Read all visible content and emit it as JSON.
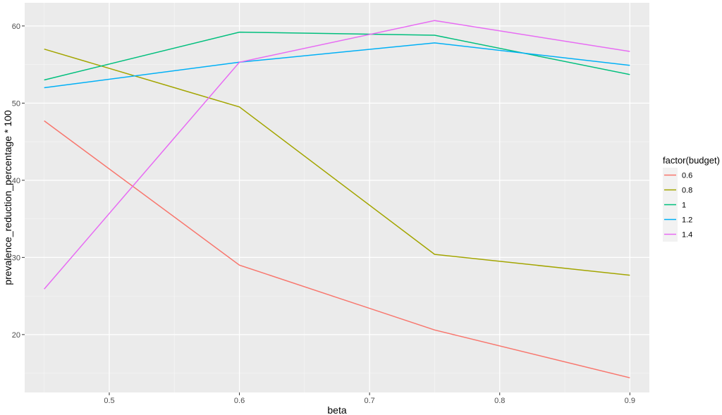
{
  "chart_data": {
    "type": "line",
    "xlabel": "beta",
    "ylabel": "prevalence_reduction_percentage * 100",
    "xlim": [
      0.435,
      0.915
    ],
    "ylim": [
      12.5,
      63
    ],
    "x_ticks": [
      0.5,
      0.6,
      0.7,
      0.8,
      0.9
    ],
    "x_tick_labels": [
      "0.5",
      "0.6",
      "0.7",
      "0.8",
      "0.9"
    ],
    "y_ticks": [
      20,
      30,
      40,
      50,
      60
    ],
    "y_tick_labels": [
      "20",
      "30",
      "40",
      "50",
      "60"
    ],
    "x": [
      0.45,
      0.6,
      0.75,
      0.9
    ],
    "grid": true,
    "background": "#ebebeb",
    "legend": {
      "title": "factor(budget)",
      "position": "right"
    },
    "series": [
      {
        "name": "0.6",
        "color": "#F8766D",
        "values": [
          47.7,
          29.0,
          20.6,
          14.4
        ]
      },
      {
        "name": "0.8",
        "color": "#A3A500",
        "values": [
          57.0,
          49.5,
          30.4,
          27.7
        ]
      },
      {
        "name": "1",
        "color": "#00BF7D",
        "values": [
          53.0,
          59.2,
          58.8,
          53.7
        ]
      },
      {
        "name": "1.2",
        "color": "#00B0F6",
        "values": [
          52.0,
          55.3,
          57.8,
          54.9
        ]
      },
      {
        "name": "1.4",
        "color": "#E76BF3",
        "values": [
          25.9,
          55.3,
          60.7,
          56.7
        ]
      }
    ]
  }
}
